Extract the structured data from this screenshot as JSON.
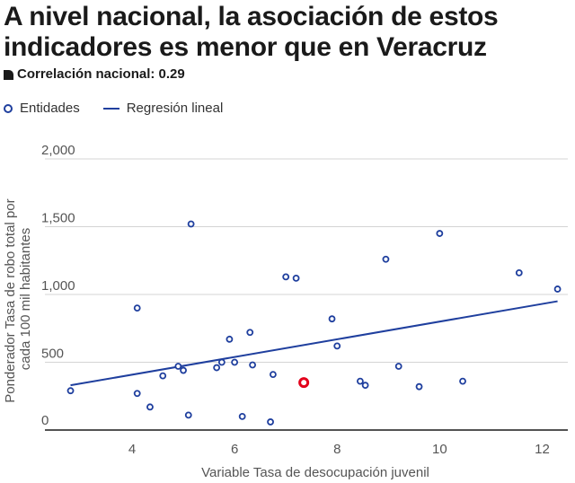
{
  "title": "A nivel nacional, la asociación de estos indicadores es menor que en Veracruz",
  "subtitle": "Correlación nacional: 0.29",
  "legend": {
    "points_label": "Entidades",
    "line_label": "Regresión lineal"
  },
  "colors": {
    "points": "#1f3f9e",
    "line": "#1f3f9e",
    "highlight": "#e3001b",
    "grid": "#d4d4d4",
    "axis": "#1a1a1a"
  },
  "chart_data": {
    "type": "scatter",
    "xlabel": "Variable Tasa de desocupación juvenil",
    "ylabel_lines": [
      "Ponderador Tasa de robo total por",
      "cada 100 mil habitantes"
    ],
    "xlim": [
      2.3,
      12.5
    ],
    "ylim": [
      0,
      2000
    ],
    "xticks": [
      4,
      6,
      8,
      10,
      12
    ],
    "yticks": [
      0,
      500,
      1000,
      1500,
      2000
    ],
    "ytick_labels": [
      "0",
      "500",
      "1,000",
      "1,500",
      "2,000"
    ],
    "grid": "horizontal",
    "series": [
      {
        "name": "Entidades",
        "points": [
          [
            2.8,
            290
          ],
          [
            4.1,
            900
          ],
          [
            4.1,
            270
          ],
          [
            4.35,
            170
          ],
          [
            4.6,
            400
          ],
          [
            4.9,
            470
          ],
          [
            5.0,
            440
          ],
          [
            5.1,
            110
          ],
          [
            5.15,
            1520
          ],
          [
            5.65,
            460
          ],
          [
            5.75,
            500
          ],
          [
            5.9,
            670
          ],
          [
            6.0,
            500
          ],
          [
            6.15,
            100
          ],
          [
            6.3,
            720
          ],
          [
            6.35,
            480
          ],
          [
            6.7,
            60
          ],
          [
            6.75,
            410
          ],
          [
            7.0,
            1130
          ],
          [
            7.2,
            1120
          ],
          [
            7.9,
            820
          ],
          [
            8.0,
            620
          ],
          [
            8.45,
            360
          ],
          [
            8.55,
            330
          ],
          [
            8.95,
            1260
          ],
          [
            9.2,
            470
          ],
          [
            9.6,
            320
          ],
          [
            10.0,
            1450
          ],
          [
            10.45,
            360
          ],
          [
            11.55,
            1160
          ],
          [
            12.3,
            1040
          ]
        ]
      }
    ],
    "highlight_point": [
      7.35,
      350
    ],
    "regression": {
      "name": "Regresión lineal",
      "x": [
        2.8,
        12.3
      ],
      "y": [
        330,
        950
      ]
    }
  }
}
